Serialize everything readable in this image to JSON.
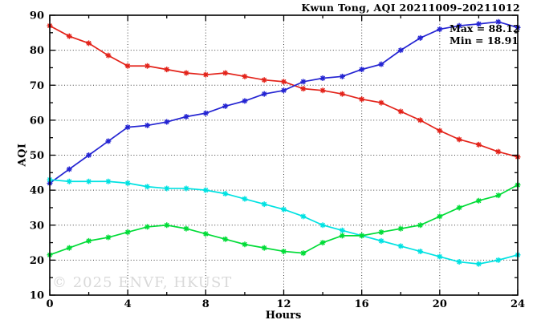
{
  "title": "Kwun Tong, AQI 20211009–20211012",
  "watermark": "© 2025 ENVF, HKUST",
  "annotation": {
    "max_label": "Max = 88.12",
    "min_label": "Min = 18.91"
  },
  "chart_data": {
    "type": "line",
    "title": "Kwun Tong, AQI 20211009–20211012",
    "xlabel": "Hours",
    "ylabel": "AQI",
    "xlim": [
      0,
      24
    ],
    "ylim": [
      10,
      90
    ],
    "x_major_ticks": [
      0,
      4,
      8,
      12,
      16,
      20,
      24
    ],
    "x_minor_ticks": [
      2,
      6,
      10,
      14,
      18,
      22
    ],
    "y_major_ticks": [
      10,
      20,
      30,
      40,
      50,
      60,
      70,
      80,
      90
    ],
    "y_minor_ticks": [
      15,
      25,
      35,
      45,
      55,
      65,
      75,
      85
    ],
    "grid": true,
    "legend": "none",
    "marker": "asterisk",
    "max_value": 88.12,
    "min_value": 18.91,
    "x": [
      0,
      1,
      2,
      3,
      4,
      5,
      6,
      7,
      8,
      9,
      10,
      11,
      12,
      13,
      14,
      15,
      16,
      17,
      18,
      19,
      20,
      21,
      22,
      23,
      24
    ],
    "series": [
      {
        "name": "red",
        "color": "#e3231a",
        "values": [
          87,
          84,
          82,
          78.5,
          75.5,
          75.5,
          74.5,
          73.5,
          73,
          73.5,
          72.5,
          71.5,
          71,
          69,
          68.5,
          67.5,
          66,
          65,
          62.5,
          60,
          57,
          54.5,
          53,
          51,
          49.5
        ]
      },
      {
        "name": "blue",
        "color": "#2424d2",
        "values": [
          42,
          46,
          50,
          54,
          58,
          58.5,
          59.5,
          61,
          62,
          64,
          65.5,
          67.5,
          68.5,
          71,
          72,
          72.5,
          74.5,
          76,
          80,
          83.5,
          86,
          87,
          87.5,
          88.12,
          86.5
        ]
      },
      {
        "name": "cyan",
        "color": "#00e2e2",
        "values": [
          43,
          42.5,
          42.5,
          42.5,
          42,
          41,
          40.5,
          40.5,
          40,
          39,
          37.5,
          36,
          34.5,
          32.5,
          30,
          28.5,
          27,
          25.5,
          24,
          22.5,
          21,
          19.5,
          18.91,
          20,
          21.5
        ]
      },
      {
        "name": "green",
        "color": "#00dc37",
        "values": [
          21.5,
          23.5,
          25.5,
          26.5,
          28,
          29.5,
          30,
          29,
          27.5,
          26,
          24.5,
          23.5,
          22.5,
          22,
          25,
          27,
          27,
          28,
          29,
          30,
          32.5,
          35,
          37,
          38.5,
          41.5
        ]
      }
    ]
  }
}
